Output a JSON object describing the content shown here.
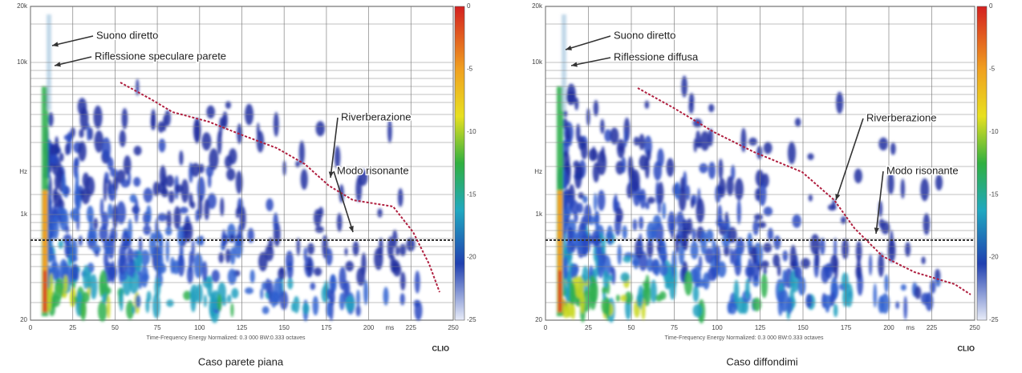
{
  "panels": [
    {
      "title": "Caso parete piana",
      "annotations": [
        "Suono diretto",
        "Riflessione speculare parete",
        "Riverberazione",
        "Modo risonante"
      ],
      "x_ticks": [
        0,
        25,
        50,
        75,
        100,
        125,
        150,
        175,
        200,
        225,
        250
      ],
      "x_unit": "ms",
      "y_ticks": [
        "20k",
        "10k",
        "Hz",
        "1k",
        "20"
      ],
      "colorbar_ticks": [
        0,
        -5,
        -10,
        -15,
        -20,
        -25
      ],
      "note": "Time-Frequency Energy  Normalized: 0.3 000 BW:0.333 octaves",
      "logo": "CLIO"
    },
    {
      "title": "Caso diffondimi",
      "annotations": [
        "Suono diretto",
        "Riflessione diffusa",
        "Riverberazione",
        "Modo risonante"
      ],
      "x_ticks": [
        0,
        25,
        50,
        75,
        100,
        125,
        150,
        175,
        200,
        225,
        250
      ],
      "x_unit": "ms",
      "y_ticks": [
        "20k",
        "10k",
        "Hz",
        "1k",
        "20"
      ],
      "colorbar_ticks": [
        0,
        -5,
        -10,
        -15,
        -20,
        -25
      ],
      "note": "Time-Frequency Energy  Normalized: 0.3 000 BW:0.333 octaves",
      "logo": "CLIO"
    }
  ]
}
